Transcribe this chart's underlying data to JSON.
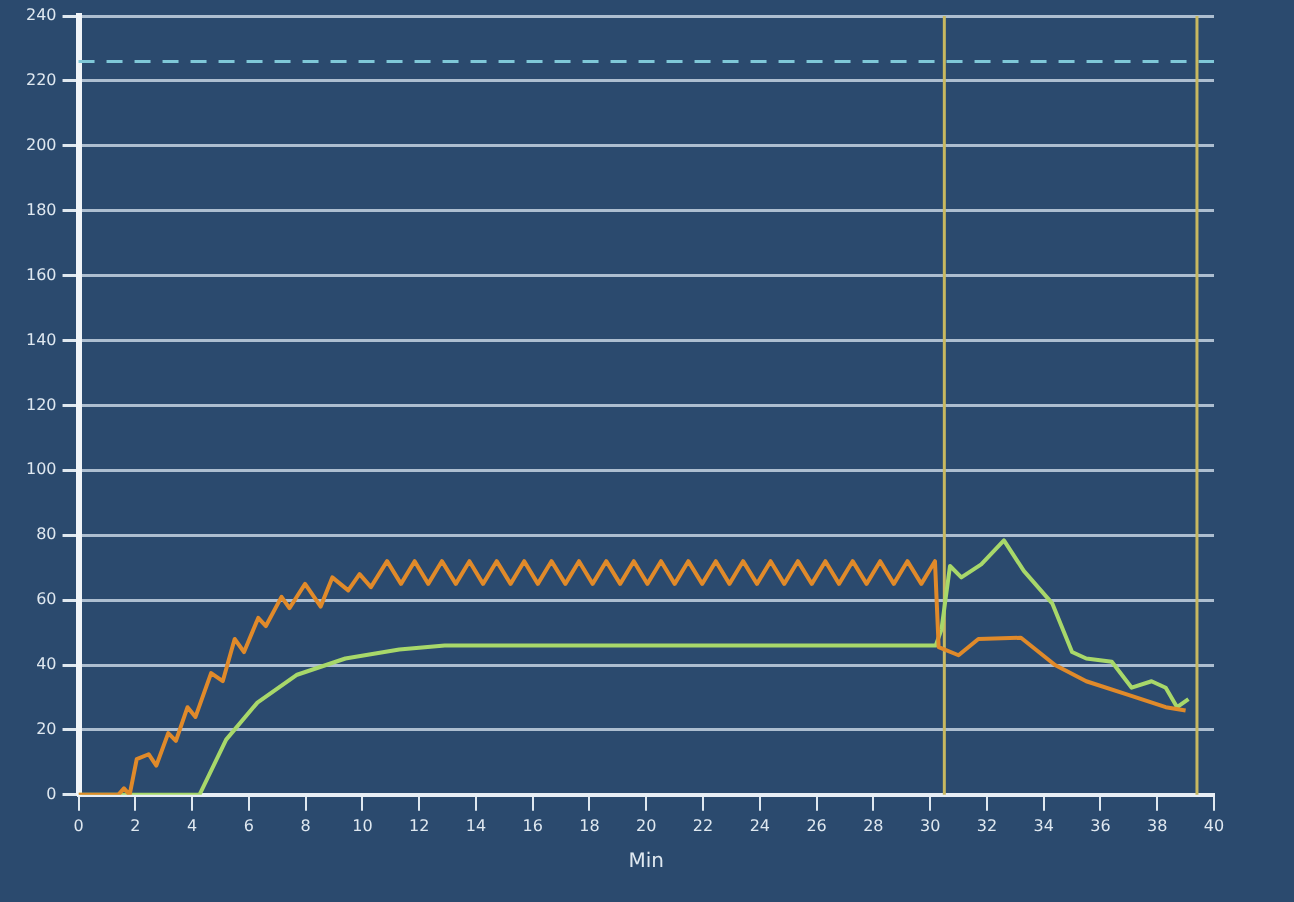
{
  "chart_data": {
    "type": "line",
    "xlabel": "Min",
    "xlim": [
      0,
      40
    ],
    "xticks": [
      0,
      2,
      4,
      6,
      8,
      10,
      12,
      14,
      16,
      18,
      20,
      22,
      24,
      26,
      28,
      30,
      32,
      34,
      36,
      38,
      40
    ],
    "ylim": [
      0,
      240
    ],
    "yticks": [
      0,
      20,
      40,
      60,
      80,
      100,
      120,
      140,
      160,
      180,
      200,
      220,
      240
    ],
    "grid": "y",
    "legend": false,
    "marker": "none",
    "line_style": "solid",
    "series": [
      {
        "color": "#e08a2a",
        "x": [
          0,
          1.4,
          1.6,
          1.8,
          2.05,
          2.47,
          2.74,
          3.16,
          3.43,
          3.84,
          4.12,
          4.67,
          5.08,
          5.5,
          5.83,
          6.33,
          6.6,
          7.15,
          7.43,
          7.98,
          8.53,
          8.94,
          9.5,
          9.9,
          10.3,
          10.87,
          11.36,
          11.84,
          12.32,
          12.8,
          13.29,
          13.77,
          14.25,
          14.73,
          15.22,
          15.7,
          16.18,
          16.66,
          17.15,
          17.63,
          18.11,
          18.59,
          19.08,
          19.56,
          20.04,
          20.52,
          21,
          21.48,
          21.97,
          22.45,
          22.93,
          23.41,
          23.9,
          24.38,
          24.86,
          25.34,
          25.83,
          26.31,
          26.79,
          27.27,
          27.76,
          28.24,
          28.72,
          29.2,
          29.69,
          30.17,
          30.3,
          31,
          31.7,
          33.2,
          34.4,
          35.5,
          36.9,
          38.3,
          39
        ],
        "values": [
          0,
          0,
          2,
          0,
          11,
          12.5,
          9,
          19,
          16.6,
          27,
          24,
          37.5,
          35,
          48,
          44,
          54.5,
          52,
          61,
          57.5,
          65,
          58,
          67,
          63,
          68,
          64,
          72,
          65,
          72,
          65,
          72,
          65,
          72,
          65,
          72,
          65,
          72,
          65,
          72,
          65,
          72,
          65,
          72,
          65,
          72,
          65,
          72,
          65,
          72,
          65,
          72,
          65,
          72,
          65,
          72,
          65,
          72,
          65,
          72,
          65,
          72,
          65,
          72,
          65,
          72,
          65,
          72,
          45.5,
          43,
          48,
          48.4,
          40,
          35,
          31,
          27,
          26
        ]
      },
      {
        "color": "#a8d86a",
        "x": [
          0,
          4.26,
          5.2,
          6.3,
          7.7,
          9.4,
          11.3,
          12.9,
          30.2,
          30.4,
          30.7,
          31.1,
          31.8,
          32.6,
          33.3,
          34.3,
          35,
          35.5,
          36.4,
          37.1,
          37.8,
          38.3,
          38.7,
          39.1
        ],
        "values": [
          0,
          0,
          17,
          28.4,
          37,
          42,
          44.8,
          46,
          46,
          51,
          70.5,
          67,
          71,
          78.4,
          69,
          59,
          44,
          42,
          41,
          33,
          35,
          33,
          27,
          29.5
        ]
      }
    ],
    "ref_lines": [
      {
        "axis": "y",
        "value": 226,
        "color": "#7fc8d8",
        "line_style": "dashed"
      },
      {
        "axis": "x",
        "value": 30.5,
        "color": "#c8b860",
        "line_style": "solid"
      },
      {
        "axis": "x",
        "value": 39.4,
        "color": "#c8b860",
        "line_style": "solid"
      }
    ]
  }
}
